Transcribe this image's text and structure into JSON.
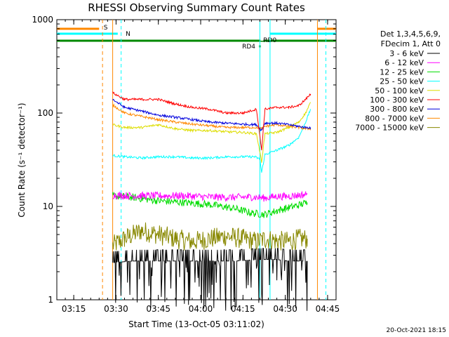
{
  "chart_data": {
    "type": "line",
    "title": "RHESSI Observing Summary Count Rates",
    "xlabel": "Start Time (13-Oct-05 03:11:02)",
    "ylabel": "Count Rate (s⁻¹ detector⁻¹)",
    "xlim": [
      3.15,
      4.8
    ],
    "ylim": [
      1,
      1000
    ],
    "yscale": "log",
    "grid": false,
    "xticks": [
      "03:15",
      "03:30",
      "03:45",
      "04:00",
      "04:15",
      "04:30",
      "04:45"
    ],
    "xtick_values": [
      3.25,
      3.5,
      3.75,
      4.0,
      4.25,
      4.5,
      4.75
    ],
    "yticks": [
      "1",
      "10",
      "100",
      "1000"
    ],
    "ytick_values": [
      1,
      10,
      100,
      1000
    ],
    "legend_position": "right",
    "legend_header": [
      "Det 1,3,4,5,6,9,",
      "FDecim 1, Att 0"
    ],
    "series": [
      {
        "name": "3 - 6 keV",
        "color": "#000000",
        "x": [
          3.48,
          3.6,
          3.75,
          3.9,
          4.05,
          4.2,
          4.35,
          4.45,
          4.52,
          4.63
        ],
        "y": [
          2.5,
          2.6,
          2.6,
          2.6,
          2.6,
          2.6,
          2.7,
          2.7,
          2.6,
          2.6
        ]
      },
      {
        "name": "6 - 12 keV",
        "color": "#ff00ff",
        "x": [
          3.48,
          3.6,
          3.75,
          3.9,
          4.05,
          4.2,
          4.3,
          4.38,
          4.45,
          4.5,
          4.55,
          4.63
        ],
        "y": [
          13.2,
          13,
          13,
          13,
          12.6,
          12.5,
          12.6,
          12.3,
          12.8,
          12.8,
          13,
          13.5
        ]
      },
      {
        "name": "12 - 25 keV",
        "color": "#00dd00",
        "x": [
          3.48,
          3.6,
          3.75,
          3.9,
          4.05,
          4.2,
          4.3,
          4.38,
          4.45,
          4.5,
          4.55,
          4.63
        ],
        "y": [
          13,
          12.5,
          11.5,
          11,
          10.5,
          9.5,
          8.5,
          8.2,
          9,
          9.5,
          10,
          11
        ]
      },
      {
        "name": "25 - 50 keV",
        "color": "#00ffff",
        "x": [
          3.48,
          3.55,
          3.65,
          3.75,
          3.85,
          3.95,
          4.05,
          4.15,
          4.25,
          4.32,
          4.35,
          4.36,
          4.38,
          4.45,
          4.52,
          4.58,
          4.62,
          4.65
        ],
        "y": [
          35,
          34,
          33,
          34,
          34,
          33,
          33,
          34,
          34,
          34,
          32,
          23,
          36,
          40,
          45,
          55,
          80,
          110
        ]
      },
      {
        "name": "50 - 100 keV",
        "color": "#dddd00",
        "x": [
          3.48,
          3.55,
          3.65,
          3.75,
          3.85,
          3.95,
          4.05,
          4.15,
          4.25,
          4.33,
          4.36,
          4.38,
          4.45,
          4.52,
          4.58,
          4.62,
          4.65
        ],
        "y": [
          75,
          70,
          70,
          75,
          68,
          65,
          65,
          63,
          62,
          60,
          30,
          60,
          62,
          70,
          80,
          100,
          130
        ]
      },
      {
        "name": "100 - 300 keV",
        "color": "#ff0000",
        "x": [
          3.48,
          3.55,
          3.65,
          3.75,
          3.85,
          3.95,
          4.05,
          4.15,
          4.25,
          4.33,
          4.36,
          4.38,
          4.45,
          4.52,
          4.58,
          4.62,
          4.65
        ],
        "y": [
          165,
          140,
          140,
          140,
          125,
          115,
          110,
          100,
          100,
          110,
          40,
          110,
          115,
          115,
          120,
          140,
          160
        ]
      },
      {
        "name": "300 - 800 keV",
        "color": "#0000dd",
        "x": [
          3.48,
          3.55,
          3.65,
          3.75,
          3.85,
          3.95,
          4.05,
          4.15,
          4.25,
          4.33,
          4.36,
          4.38,
          4.45,
          4.52,
          4.58,
          4.62,
          4.65
        ],
        "y": [
          140,
          115,
          105,
          95,
          90,
          85,
          80,
          78,
          76,
          75,
          65,
          78,
          78,
          75,
          72,
          70,
          70
        ]
      },
      {
        "name": "800 - 7000 keV",
        "color": "#ff8800",
        "x": [
          3.48,
          3.55,
          3.65,
          3.75,
          3.85,
          3.95,
          4.05,
          4.15,
          4.25,
          4.33,
          4.36,
          4.38,
          4.45,
          4.52,
          4.58,
          4.62,
          4.65
        ],
        "y": [
          122,
          100,
          92,
          85,
          80,
          76,
          73,
          70,
          70,
          70,
          68,
          72,
          75,
          72,
          70,
          68,
          68
        ]
      },
      {
        "name": "7000 - 15000 keV",
        "color": "#888800",
        "x": [
          3.48,
          3.55,
          3.65,
          3.75,
          3.85,
          3.95,
          4.05,
          4.15,
          4.25,
          4.33,
          4.38,
          4.45,
          4.52,
          4.58,
          4.63
        ],
        "y": [
          3.8,
          4.5,
          5.5,
          5,
          4.5,
          4.2,
          4.5,
          4.8,
          4.5,
          4.2,
          4.5,
          4.3,
          4.2,
          4.5,
          4.5
        ]
      }
    ],
    "vlines": [
      {
        "x": 3.42,
        "color": "#ff8800",
        "style": "dashed"
      },
      {
        "x": 3.48,
        "color": "#ff8800",
        "style": "solid"
      },
      {
        "x": 3.53,
        "color": "#00ffff",
        "style": "dashed"
      },
      {
        "x": 4.35,
        "color": "#00ffff",
        "style": "solid"
      },
      {
        "x": 4.41,
        "color": "#00ffff",
        "style": "solid"
      },
      {
        "x": 4.69,
        "color": "#ff8800",
        "style": "solid"
      },
      {
        "x": 4.74,
        "color": "#00ffff",
        "style": "dashed"
      }
    ],
    "annotations": [
      {
        "label": "S",
        "color": "#ff8800"
      },
      {
        "label": "N",
        "color": "#00ffff"
      },
      {
        "label": "RD0",
        "color": "#008800"
      },
      {
        "label": "RD4",
        "color": "#008800"
      }
    ],
    "footer_date": "20-Oct-2021 18:15"
  }
}
